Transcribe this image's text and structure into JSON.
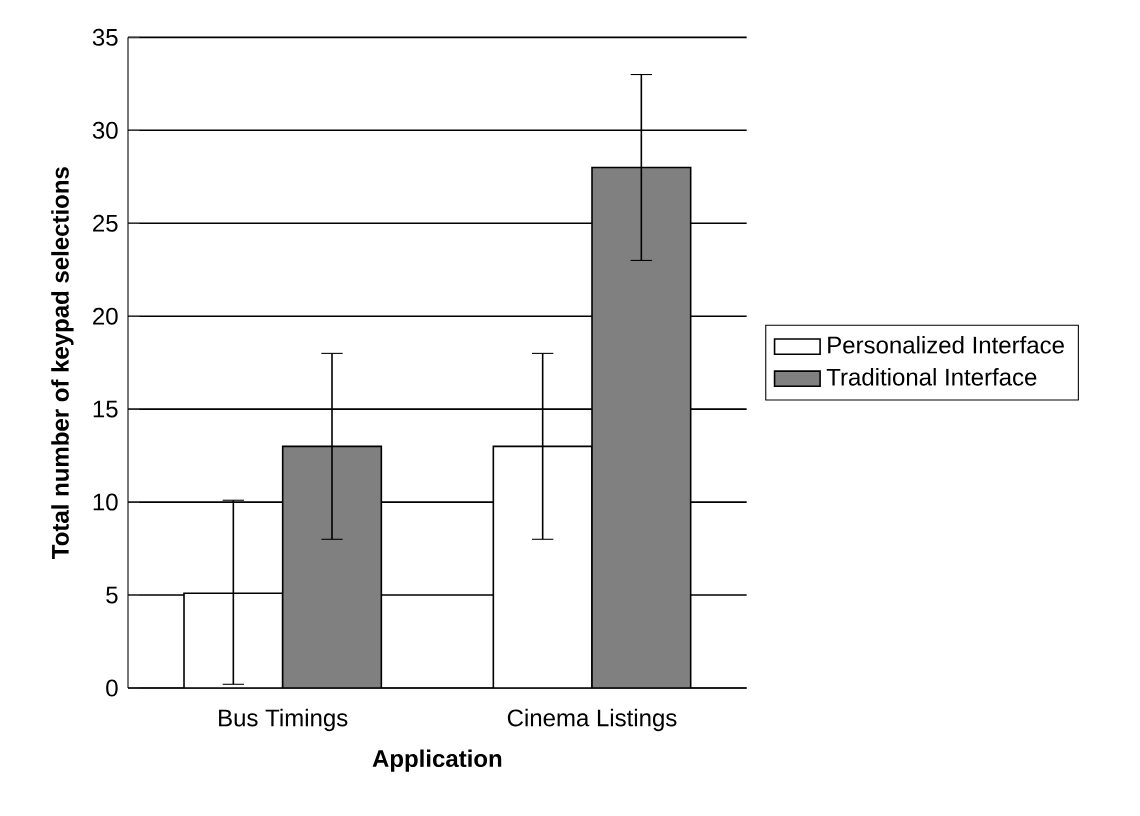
{
  "chart_data": {
    "type": "bar",
    "xlabel": "Application",
    "ylabel": "Total number of keypad selections",
    "categories": [
      "Bus Timings",
      "Cinema Listings"
    ],
    "series": [
      {
        "name": "Personalized Interface",
        "color": "#ffffff",
        "values": [
          5.1,
          13
        ],
        "errors": [
          [
            0.2,
            10.1
          ],
          [
            8,
            18
          ]
        ]
      },
      {
        "name": "Traditional Interface",
        "color": "#808080",
        "values": [
          13,
          28
        ],
        "errors": [
          [
            8,
            18
          ],
          [
            23,
            33
          ]
        ]
      }
    ],
    "ylim": [
      0,
      35
    ],
    "yticks": [
      0,
      5,
      10,
      15,
      20,
      25,
      30,
      35
    ],
    "grid": "y",
    "legend": "right"
  }
}
